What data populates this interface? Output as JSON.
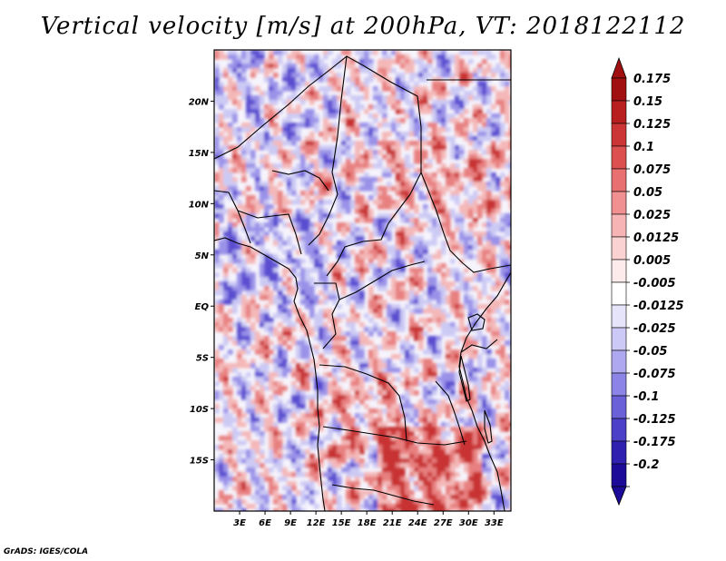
{
  "title": "Vertical velocity [m/s] at 200hPa, VT: 2018122112",
  "credit": "GrADS: IGES/COLA",
  "map": {
    "lat_range": [
      -20,
      25
    ],
    "lon_range": [
      0,
      35
    ],
    "lat_ticks": [
      {
        "value": 20,
        "label": "20N"
      },
      {
        "value": 15,
        "label": "15N"
      },
      {
        "value": 10,
        "label": "10N"
      },
      {
        "value": 5,
        "label": "5N"
      },
      {
        "value": 0,
        "label": "EQ"
      },
      {
        "value": -5,
        "label": "5S"
      },
      {
        "value": -10,
        "label": "10S"
      },
      {
        "value": -15,
        "label": "15S"
      }
    ],
    "lon_ticks": [
      {
        "value": 3,
        "label": "3E"
      },
      {
        "value": 6,
        "label": "6E"
      },
      {
        "value": 9,
        "label": "9E"
      },
      {
        "value": 12,
        "label": "12E"
      },
      {
        "value": 15,
        "label": "15E"
      },
      {
        "value": 18,
        "label": "18E"
      },
      {
        "value": 21,
        "label": "21E"
      },
      {
        "value": 24,
        "label": "24E"
      },
      {
        "value": 27,
        "label": "27E"
      },
      {
        "value": 30,
        "label": "30E"
      },
      {
        "value": 33,
        "label": "33E"
      }
    ]
  },
  "colorbar": {
    "levels": [
      {
        "label": "0.175",
        "color": "#a01010"
      },
      {
        "label": "0.15",
        "color": "#b82020"
      },
      {
        "label": "0.125",
        "color": "#cc3535"
      },
      {
        "label": "0.1",
        "color": "#dc5050"
      },
      {
        "label": "0.075",
        "color": "#e87070"
      },
      {
        "label": "0.05",
        "color": "#f09090"
      },
      {
        "label": "0.025",
        "color": "#f6b4b4"
      },
      {
        "label": "0.0125",
        "color": "#fad2d2"
      },
      {
        "label": "0.005",
        "color": "#fdeaea"
      },
      {
        "label": "-0.005",
        "color": "#ffffff"
      },
      {
        "label": "-0.0125",
        "color": "#e6e4fa"
      },
      {
        "label": "-0.025",
        "color": "#cdc9f6"
      },
      {
        "label": "-0.05",
        "color": "#aea8f0"
      },
      {
        "label": "-0.075",
        "color": "#8c84e6"
      },
      {
        "label": "-0.1",
        "color": "#6a60d8"
      },
      {
        "label": "-0.125",
        "color": "#4c40c8"
      },
      {
        "label": "-0.175",
        "color": "#3020b0"
      },
      {
        "label": "-0.2",
        "color": "#1c0a98"
      }
    ],
    "top_cap_color": "#a01010",
    "bottom_cap_color": "#1c0a98"
  },
  "field_colors": {
    "strong_up": "#c83030",
    "up": "#e88080",
    "weak_up": "#f4b8b8",
    "neutral": "#ffffff",
    "weak_down": "#cccaf4",
    "down": "#9a92e8",
    "strong_down": "#5a4ed0"
  }
}
